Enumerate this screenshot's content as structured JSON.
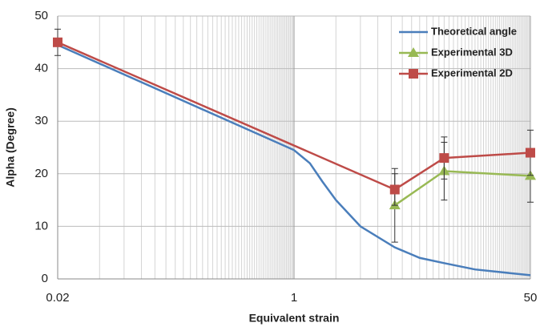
{
  "chart_data": {
    "type": "line",
    "xlabel": "Equivalent strain",
    "ylabel": "Alpha (Degree)",
    "xscale": "log",
    "xlim": [
      0.02,
      50
    ],
    "xticks": [
      0.02,
      1,
      50
    ],
    "ylim": [
      0,
      50
    ],
    "yticks": [
      0,
      10,
      20,
      30,
      40,
      50
    ],
    "grid": true,
    "minor_grid": true,
    "legend": "upper right",
    "series": [
      {
        "name": "Theoretical angle",
        "color": "#4a7ebb",
        "marker": "none",
        "x": [
          0.02,
          1,
          1.3,
          1.6,
          2,
          3,
          5.3,
          8,
          12,
          20,
          50
        ],
        "values": [
          44.5,
          24.5,
          22,
          18.5,
          15,
          10,
          6,
          4,
          3,
          1.8,
          0.7
        ]
      },
      {
        "name": "Experimental 3D",
        "color": "#98b954",
        "marker": "triangle",
        "x": [
          5.3,
          12,
          50
        ],
        "values": [
          14,
          20.5,
          19.6
        ],
        "errors": [
          7,
          5.5,
          5
        ]
      },
      {
        "name": "Experimental 2D",
        "color": "#be4b48",
        "marker": "square",
        "x": [
          0.02,
          5.3,
          12,
          50
        ],
        "values": [
          45,
          17,
          23,
          24
        ],
        "errors": [
          2.5,
          3,
          4,
          4.3
        ]
      }
    ]
  }
}
